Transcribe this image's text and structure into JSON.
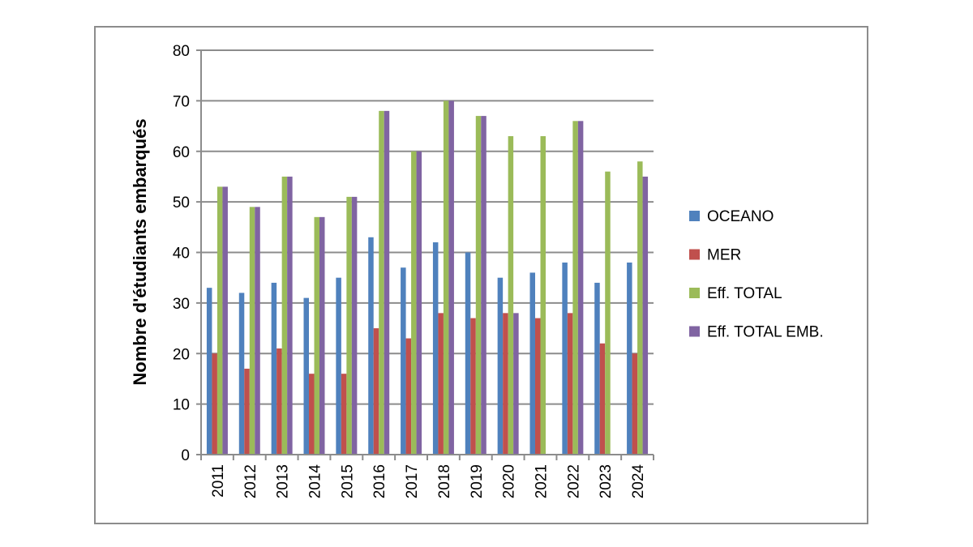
{
  "chart_data": {
    "type": "bar",
    "title": "",
    "xlabel": "",
    "ylabel": "Nombre d'étudiants embarqués",
    "ylim": [
      0,
      80
    ],
    "yticks": [
      0,
      10,
      20,
      30,
      40,
      50,
      60,
      70,
      80
    ],
    "grid": true,
    "legend_position": "right",
    "categories": [
      "2011",
      "2012",
      "2013",
      "2014",
      "2015",
      "2016",
      "2017",
      "2018",
      "2019",
      "2020",
      "2021",
      "2022",
      "2023",
      "2024"
    ],
    "series": [
      {
        "name": "OCEANO",
        "color": "#4f81bd",
        "values": [
          33,
          32,
          34,
          31,
          35,
          43,
          37,
          42,
          40,
          35,
          36,
          38,
          34,
          38
        ]
      },
      {
        "name": "MER",
        "color": "#c0504d",
        "values": [
          20,
          17,
          21,
          16,
          16,
          25,
          23,
          28,
          27,
          28,
          27,
          28,
          22,
          20
        ]
      },
      {
        "name": "Eff. TOTAL",
        "color": "#9bbb59",
        "values": [
          53,
          49,
          55,
          47,
          51,
          68,
          60,
          70,
          67,
          63,
          63,
          66,
          56,
          58
        ]
      },
      {
        "name": "Eff. TOTAL EMB.",
        "color": "#8064a2",
        "values": [
          53,
          49,
          55,
          47,
          51,
          68,
          60,
          70,
          67,
          28,
          0,
          66,
          0,
          55
        ]
      }
    ]
  }
}
